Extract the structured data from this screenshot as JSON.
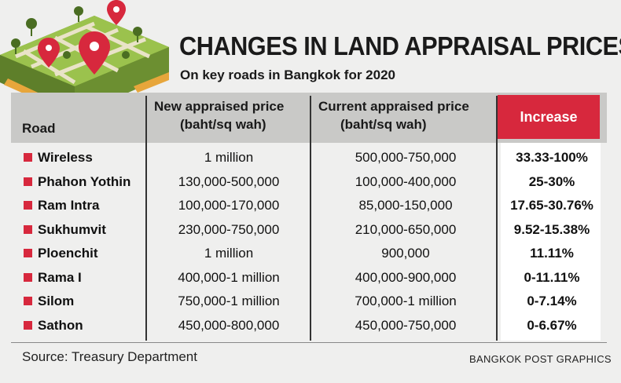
{
  "title": "CHANGES IN LAND APPRAISAL PRICES",
  "subtitle": "On key roads in Bangkok for 2020",
  "headers": {
    "road": "Road",
    "new_line1": "New appraised price",
    "new_line2": "(baht/sq wah)",
    "current_line1": "Current appraised price",
    "current_line2": "(baht/sq wah)",
    "increase": "Increase"
  },
  "rows": [
    {
      "road": "Wireless",
      "new": "1 million",
      "current": "500,000-750,000",
      "increase": "33.33-100%"
    },
    {
      "road": "Phahon Yothin",
      "new": "130,000-500,000",
      "current": "100,000-400,000",
      "increase": "25-30%"
    },
    {
      "road": "Ram Intra",
      "new": "100,000-170,000",
      "current": "85,000-150,000",
      "increase": "17.65-30.76%"
    },
    {
      "road": "Sukhumvit",
      "new": "230,000-750,000",
      "current": "210,000-650,000",
      "increase": "9.52-15.38%"
    },
    {
      "road": "Ploenchit",
      "new": "1 million",
      "current": "900,000",
      "increase": "11.11%"
    },
    {
      "road": "Rama I",
      "new": "400,000-1 million",
      "current": "400,000-900,000",
      "increase": "0-11.11%"
    },
    {
      "road": "Silom",
      "new": "750,000-1 million",
      "current": "700,000-1 million",
      "increase": "0-7.14%"
    },
    {
      "road": "Sathon",
      "new": "450,000-800,000",
      "current": "450,000-750,000",
      "increase": "0-6.67%"
    }
  ],
  "footer": {
    "source": "Source: Treasury Department",
    "credit": "BANGKOK POST GRAPHICS"
  },
  "colors": {
    "accent": "#d7283d",
    "header_band": "#c9c9c7",
    "background": "#efefee"
  },
  "icons": [
    "map-illustration",
    "map-pin-icon"
  ]
}
